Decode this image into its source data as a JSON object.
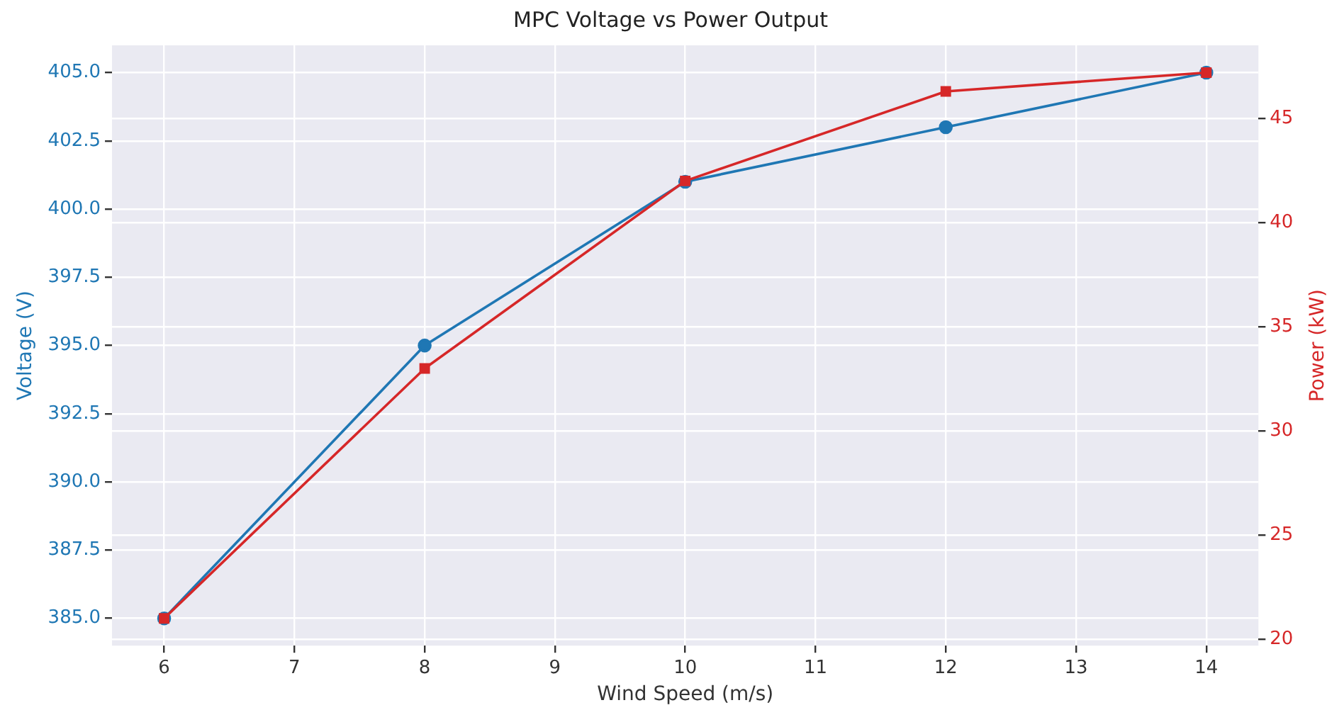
{
  "chart_data": {
    "type": "line",
    "title": "MPC Voltage vs Power Output",
    "xlabel": "Wind Speed (m/s)",
    "ylabel": "Voltage (V)",
    "y2label": "Power (kW)",
    "x": [
      6,
      8,
      10,
      12,
      14
    ],
    "series": [
      {
        "color": "#1f77b4",
        "values": [
          385,
          395,
          401,
          403,
          405
        ],
        "marker": "circle"
      },
      {
        "color": "#d62728",
        "values": [
          21,
          33,
          42,
          46.3,
          47.2
        ],
        "marker": "square",
        "axis": "y2"
      }
    ],
    "xlim": [
      5.6,
      14.4
    ],
    "xticks": [
      6,
      7,
      8,
      9,
      10,
      11,
      12,
      13,
      14
    ],
    "ylim": [
      384,
      406
    ],
    "yticks": [
      {
        "value": 385,
        "label": "385.0"
      },
      {
        "value": 387.5,
        "label": "387.5"
      },
      {
        "value": 390,
        "label": "390.0"
      },
      {
        "value": 392.5,
        "label": "392.5"
      },
      {
        "value": 395,
        "label": "395.0"
      },
      {
        "value": 397.5,
        "label": "397.5"
      },
      {
        "value": 400,
        "label": "400.0"
      },
      {
        "value": 402.5,
        "label": "402.5"
      },
      {
        "value": 405,
        "label": "405.0"
      }
    ],
    "y2lim": [
      19.69,
      48.51
    ],
    "y2ticks": [
      20,
      25,
      30,
      35,
      40,
      45
    ],
    "grid": true,
    "legend": false,
    "line_style": "solid"
  }
}
